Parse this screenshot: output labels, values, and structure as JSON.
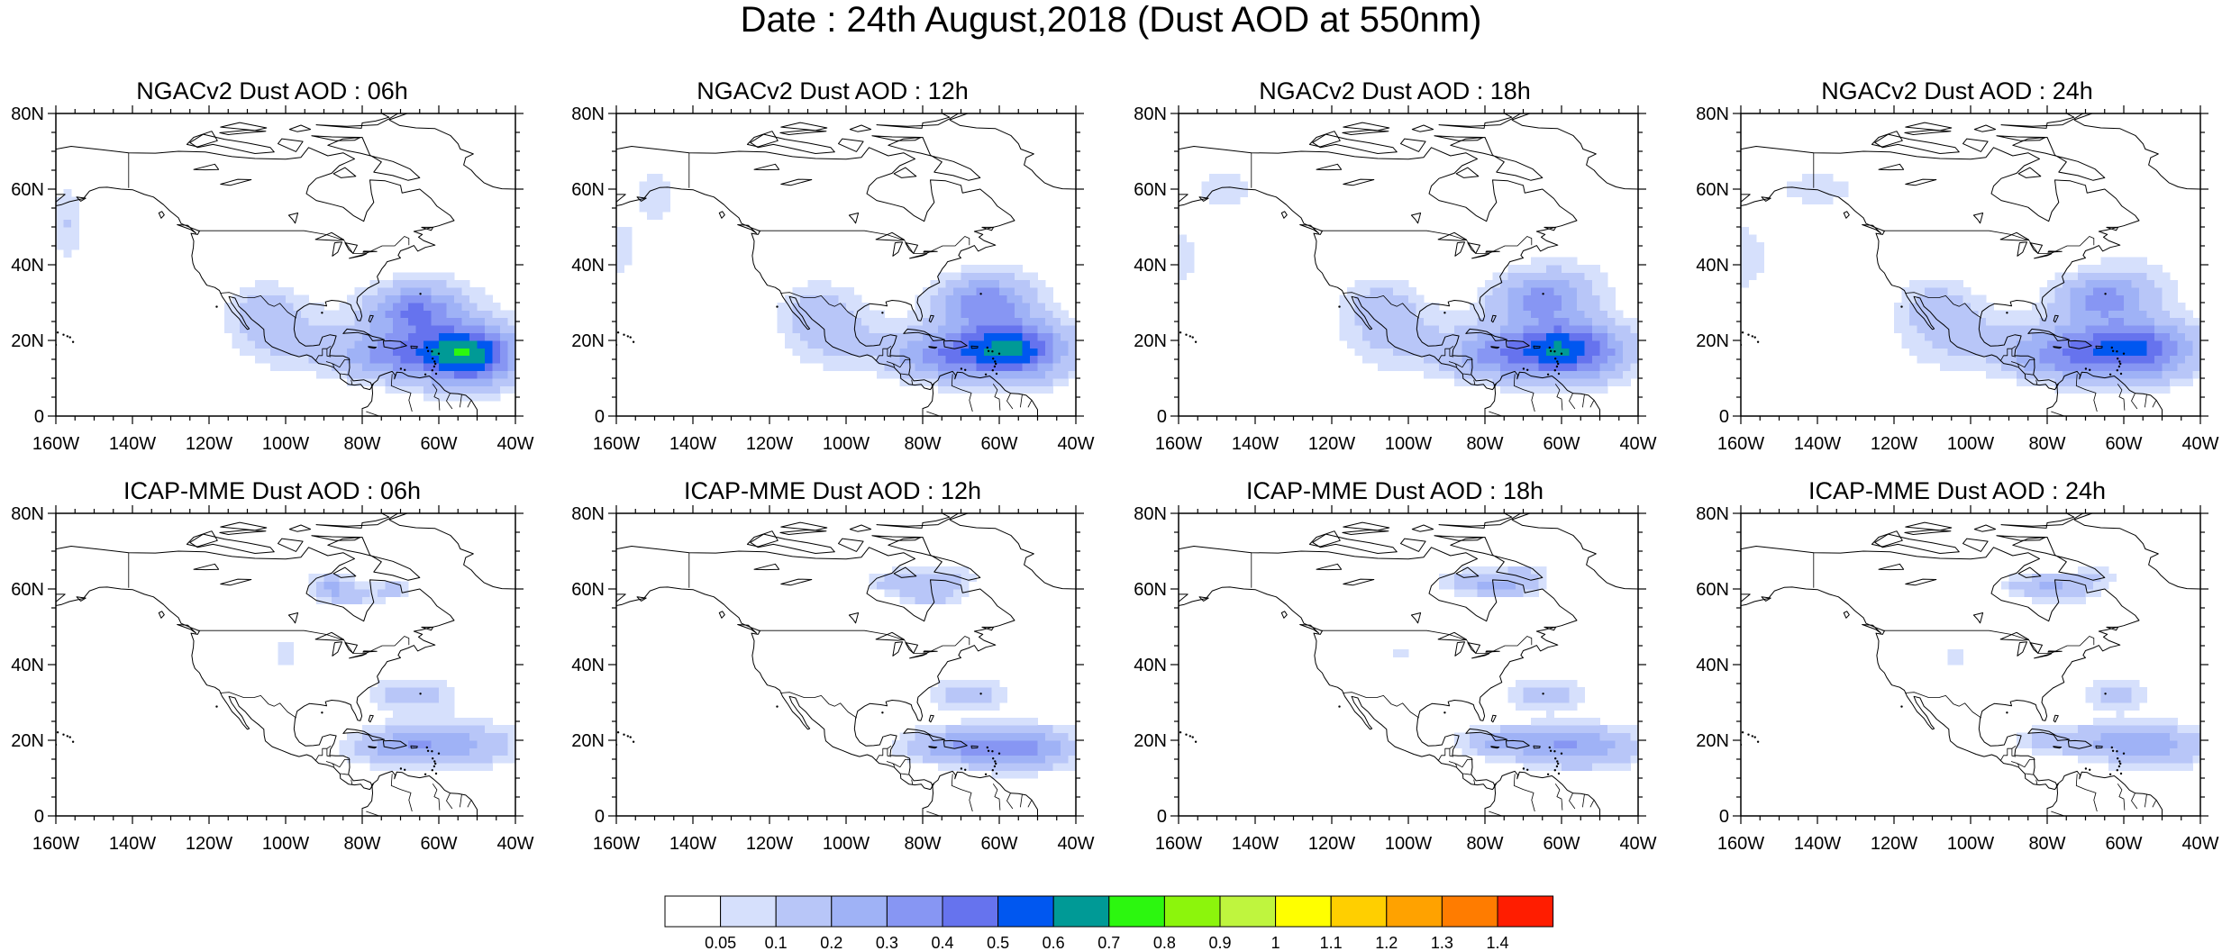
{
  "title": "Date : 24th August,2018 (Dust AOD at 550nm)",
  "x_ticks": [
    "160W",
    "140W",
    "120W",
    "100W",
    "80W",
    "60W",
    "40W"
  ],
  "y_ticks": [
    "0",
    "20N",
    "40N",
    "60N",
    "80N"
  ],
  "panels": [
    {
      "id": "ngac-06",
      "title": "NGACv2 Dust AOD : 06h",
      "model": "ngac",
      "hour": 6
    },
    {
      "id": "ngac-12",
      "title": "NGACv2 Dust AOD : 12h",
      "model": "ngac",
      "hour": 12
    },
    {
      "id": "ngac-18",
      "title": "NGACv2 Dust AOD : 18h",
      "model": "ngac",
      "hour": 18
    },
    {
      "id": "ngac-24",
      "title": "NGACv2 Dust AOD : 24h",
      "model": "ngac",
      "hour": 24
    },
    {
      "id": "icap-06",
      "title": "ICAP-MME Dust AOD : 06h",
      "model": "icap",
      "hour": 6
    },
    {
      "id": "icap-12",
      "title": "ICAP-MME Dust AOD : 12h",
      "model": "icap",
      "hour": 12
    },
    {
      "id": "icap-18",
      "title": "ICAP-MME Dust AOD : 18h",
      "model": "icap",
      "hour": 18
    },
    {
      "id": "icap-24",
      "title": "ICAP-MME Dust AOD : 24h",
      "model": "icap",
      "hour": 24
    }
  ],
  "colorbar": {
    "labels": [
      "0.05",
      "0.1",
      "0.2",
      "0.3",
      "0.4",
      "0.5",
      "0.6",
      "0.7",
      "0.8",
      "0.9",
      "1",
      "1.1",
      "1.2",
      "1.3",
      "1.4"
    ],
    "colors": [
      "#ffffff",
      "#d6e0fc",
      "#b8c6f8",
      "#9fb2f6",
      "#8796f3",
      "#6673ee",
      "#0057f0",
      "#009a96",
      "#2cf70f",
      "#8cf50c",
      "#bff53e",
      "#ffff00",
      "#ffcf00",
      "#ffa200",
      "#ff7c00",
      "#ff1d00"
    ]
  }
}
